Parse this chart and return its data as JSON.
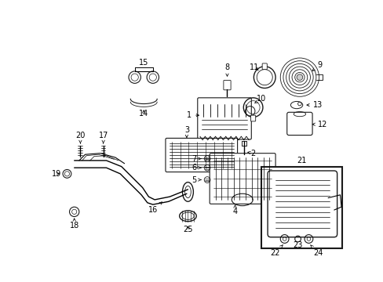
{
  "bg_color": "#ffffff",
  "fig_width": 4.89,
  "fig_height": 3.6,
  "dpi": 100,
  "line_color": "#1a1a1a",
  "label_fs": 7.0,
  "label_fs_sm": 6.0
}
